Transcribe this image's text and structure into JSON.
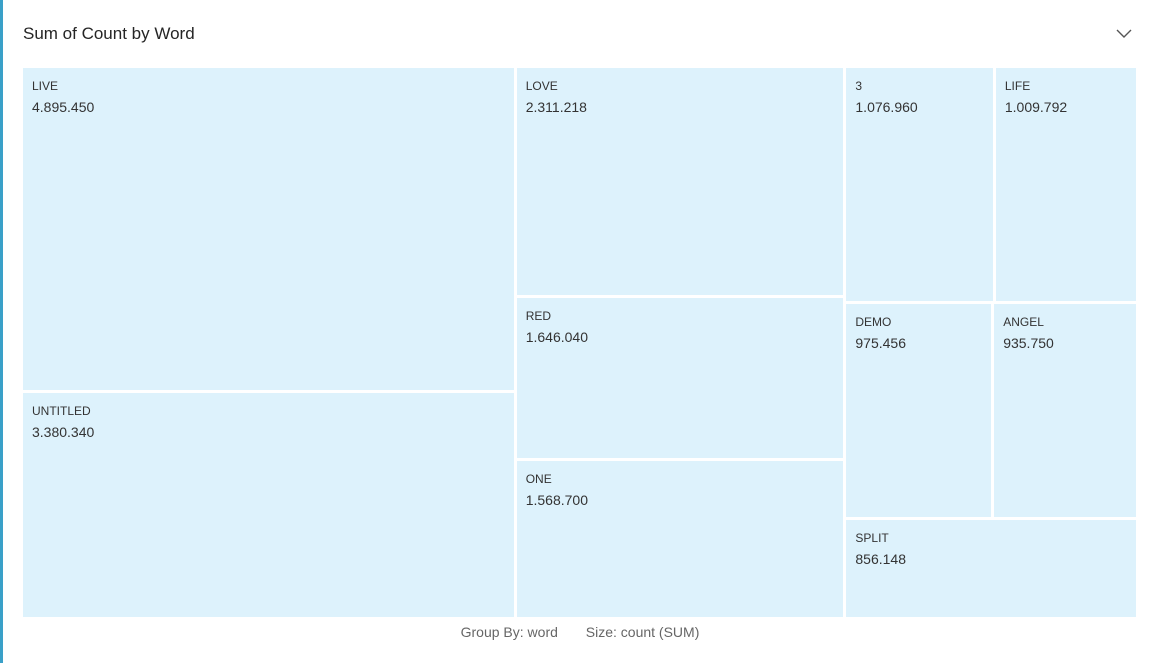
{
  "panel": {
    "title": "Sum of Count by Word",
    "group_by_label": "Group By: word",
    "size_label": "Size: count (SUM)"
  },
  "icons": {
    "collapse": "chevron-down-icon"
  },
  "colors": {
    "tile": "#ddf2fc",
    "accent": "#3aa0c8",
    "separator": "#ffffff"
  },
  "chart_data": {
    "type": "treemap",
    "title": "Sum of Count by Word",
    "tiles": [
      {
        "label": "LIVE",
        "value": 4895450,
        "display": "4.895.450"
      },
      {
        "label": "UNTITLED",
        "value": 3380340,
        "display": "3.380.340"
      },
      {
        "label": "LOVE",
        "value": 2311218,
        "display": "2.311.218"
      },
      {
        "label": "RED",
        "value": 1646040,
        "display": "1.646.040"
      },
      {
        "label": "ONE",
        "value": 1568700,
        "display": "1.568.700"
      },
      {
        "label": "3",
        "value": 1076960,
        "display": "1.076.960"
      },
      {
        "label": "LIFE",
        "value": 1009792,
        "display": "1.009.792"
      },
      {
        "label": "DEMO",
        "value": 975456,
        "display": "975.456"
      },
      {
        "label": "ANGEL",
        "value": 935750,
        "display": "935.750"
      },
      {
        "label": "SPLIT",
        "value": 856148,
        "display": "856.148"
      }
    ]
  }
}
